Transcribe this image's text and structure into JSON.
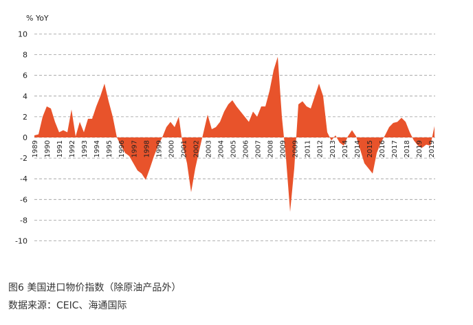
{
  "chart_data": {
    "type": "area",
    "y_label": "% YoY",
    "color": "#e8532b",
    "grid": true,
    "ylim": [
      -10,
      10
    ],
    "yticks": [
      10,
      8,
      6,
      4,
      2,
      0,
      -2,
      -4,
      -6,
      -8,
      -10
    ],
    "tick_labels": [
      "1989",
      "1990",
      "1991",
      "1992",
      "1993",
      "1994",
      "1995",
      "1996",
      "1997",
      "1998",
      "1999",
      "2000",
      "2001",
      "2002",
      "2003",
      "2004",
      "2005",
      "2006",
      "2007",
      "2008",
      "2009",
      "2009",
      "2011",
      "2012",
      "2013",
      "2014",
      "2014",
      "2015",
      "2016",
      "2017",
      "2018",
      "2019",
      "2019"
    ],
    "values": [
      0.2,
      0.3,
      2.0,
      3.0,
      2.8,
      1.5,
      0.5,
      0.7,
      0.5,
      2.7,
      0.1,
      1.5,
      0.5,
      1.8,
      1.8,
      3.0,
      4.0,
      5.2,
      3.5,
      2.0,
      0.0,
      -0.8,
      -1.5,
      -1.8,
      -2.5,
      -3.2,
      -3.5,
      -4.1,
      -3.0,
      -1.8,
      -0.8,
      0.0,
      1.0,
      1.5,
      1.0,
      2.0,
      -0.8,
      -2.5,
      -5.3,
      -3.0,
      -1.2,
      0.5,
      2.2,
      0.8,
      1.0,
      1.5,
      2.5,
      3.2,
      3.6,
      3.0,
      2.5,
      2.0,
      1.5,
      2.5,
      2.0,
      3.0,
      3.0,
      4.5,
      6.5,
      7.8,
      2.0,
      -2.0,
      -7.2,
      -3.0,
      3.2,
      3.5,
      3.0,
      2.8,
      4.0,
      5.2,
      4.0,
      0.5,
      -0.3,
      0.2,
      -0.5,
      -0.8,
      0.1,
      0.7,
      0.1,
      -1.2,
      -2.5,
      -3.0,
      -3.5,
      -1.5,
      -0.5,
      0.2,
      1.0,
      1.4,
      1.5,
      1.9,
      1.5,
      0.5,
      -0.3,
      -0.8,
      -1.0,
      -0.7,
      -0.8,
      1.1
    ]
  },
  "caption": {
    "title": "图6  美国进口物价指数（除原油产品外）",
    "source": "数据来源：CEIC、海通国际"
  }
}
